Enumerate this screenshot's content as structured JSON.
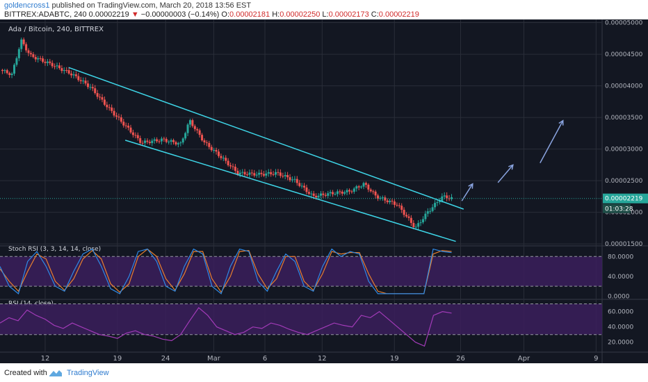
{
  "header": {
    "user": "goldencross1",
    "published": "published on TradingView.com, March 20, 2018 13:56 EST",
    "symbol_line": "BITTREX:ADABTC, 240",
    "last_price": "0.00002219",
    "change": "−0.00000003 (−0.14%)",
    "ohlc_labels": {
      "o": "O:",
      "h": "H:",
      "l": "L:",
      "c": "C:"
    },
    "ohlc_values": {
      "o": "0.00002181",
      "h": "0.00002250",
      "l": "0.00002173",
      "c": "0.00002219"
    }
  },
  "footer": {
    "created_with": "Created with",
    "brand": "TradingView"
  },
  "colors": {
    "background": "#131722",
    "up": "#26a69a",
    "down": "#ef5350",
    "channel": "#3ed6e8",
    "arrows": "#8aa4e0",
    "stoch_k": "#2e8ae6",
    "stoch_d": "#e87f2e",
    "rsi_line": "#a23bb8",
    "band_fill": "#3b1f5c",
    "price_tag": "#26a69a"
  },
  "chart_data": [
    {
      "type": "candlestick",
      "title": "Ada / Bitcoin, 240, BITTREX",
      "y_ticks": [
        "0.00005000",
        "0.00004500",
        "0.00004000",
        "0.00003500",
        "0.00003000",
        "0.00002500",
        "0.00002000",
        "0.00001500"
      ],
      "y_tick_values": [
        5e-05,
        4.5e-05,
        4e-05,
        3.5e-05,
        3e-05,
        2.5e-05,
        2e-05,
        1.5e-05
      ],
      "ylim": [
        1.48e-05,
        5.05e-05
      ],
      "x_ticks": [
        "12",
        "19",
        "24",
        "Mar",
        "6",
        "12",
        "19",
        "26",
        "Apr",
        "9"
      ],
      "last_price_label": "0.00002219",
      "countdown_label": "01:03:28",
      "price_path": [
        [
          0,
          4.25e-05
        ],
        [
          0.02,
          4.18e-05
        ],
        [
          0.035,
          4.72e-05
        ],
        [
          0.05,
          4.48e-05
        ],
        [
          0.09,
          4.32e-05
        ],
        [
          0.12,
          4.18e-05
        ],
        [
          0.15,
          3.98e-05
        ],
        [
          0.18,
          3.65e-05
        ],
        [
          0.21,
          3.35e-05
        ],
        [
          0.235,
          3.1e-05
        ],
        [
          0.27,
          3.15e-05
        ],
        [
          0.3,
          3.08e-05
        ],
        [
          0.315,
          3.45e-05
        ],
        [
          0.34,
          3.1e-05
        ],
        [
          0.37,
          2.85e-05
        ],
        [
          0.395,
          2.62e-05
        ],
        [
          0.43,
          2.6e-05
        ],
        [
          0.46,
          2.62e-05
        ],
        [
          0.49,
          2.5e-05
        ],
        [
          0.52,
          2.25e-05
        ],
        [
          0.55,
          2.3e-05
        ],
        [
          0.58,
          2.33e-05
        ],
        [
          0.605,
          2.45e-05
        ],
        [
          0.625,
          2.25e-05
        ],
        [
          0.66,
          2.12e-05
        ],
        [
          0.69,
          1.75e-05
        ],
        [
          0.71,
          2e-05
        ],
        [
          0.735,
          2.25e-05
        ],
        [
          0.75,
          2.22e-05
        ]
      ],
      "channel_upper": [
        [
          0.114,
          4.29e-05
        ],
        [
          0.77,
          2.05e-05
        ]
      ],
      "channel_lower": [
        [
          0.208,
          3.14e-05
        ],
        [
          0.757,
          1.54e-05
        ]
      ],
      "projection_arrows": [
        [
          [
            0.767,
            2.18e-05
          ],
          [
            0.785,
            2.45e-05
          ]
        ],
        [
          [
            0.827,
            2.47e-05
          ],
          [
            0.852,
            2.75e-05
          ]
        ],
        [
          [
            0.897,
            2.78e-05
          ],
          [
            0.935,
            3.45e-05
          ]
        ]
      ]
    },
    {
      "type": "line",
      "title": "Stoch RSI (3, 3, 14, 14, close)",
      "y_ticks": [
        "80.0000",
        "40.0000",
        "0.0000"
      ],
      "y_tick_values": [
        80,
        40,
        0
      ],
      "ylim": [
        -5,
        100
      ],
      "band": [
        20,
        80
      ],
      "series": [
        {
          "values_k": [
            60,
            20,
            5,
            70,
            90,
            60,
            20,
            10,
            50,
            85,
            95,
            60,
            15,
            5,
            40,
            90,
            95,
            70,
            20,
            10,
            60,
            95,
            85,
            20,
            5,
            60,
            95,
            90,
            30,
            10,
            50,
            85,
            70,
            20,
            10,
            60,
            95,
            80,
            90,
            85,
            30,
            5,
            5,
            5,
            5,
            5,
            5,
            95,
            90,
            88
          ]
        },
        {
          "values_d": [
            55,
            30,
            10,
            50,
            85,
            75,
            30,
            12,
            35,
            75,
            92,
            75,
            25,
            8,
            25,
            80,
            95,
            80,
            35,
            12,
            45,
            90,
            90,
            35,
            8,
            40,
            90,
            92,
            45,
            15,
            35,
            80,
            80,
            30,
            12,
            45,
            90,
            85,
            88,
            88,
            45,
            10,
            5,
            5,
            5,
            5,
            5,
            85,
            92,
            90
          ]
        }
      ]
    },
    {
      "type": "line",
      "title": "RSI (14, close)",
      "y_ticks": [
        "60.0000",
        "40.0000",
        "20.0000"
      ],
      "y_tick_values": [
        60,
        40,
        20
      ],
      "ylim": [
        8,
        75
      ],
      "band": [
        30,
        70
      ],
      "series": [
        {
          "values": [
            45,
            52,
            48,
            62,
            55,
            50,
            42,
            38,
            45,
            40,
            35,
            30,
            28,
            25,
            32,
            35,
            30,
            28,
            24,
            22,
            30,
            48,
            65,
            55,
            40,
            35,
            30,
            33,
            40,
            38,
            45,
            42,
            37,
            33,
            30,
            35,
            40,
            45,
            42,
            40,
            55,
            52,
            60,
            50,
            40,
            30,
            20,
            15,
            55,
            60,
            58
          ]
        }
      ]
    }
  ]
}
